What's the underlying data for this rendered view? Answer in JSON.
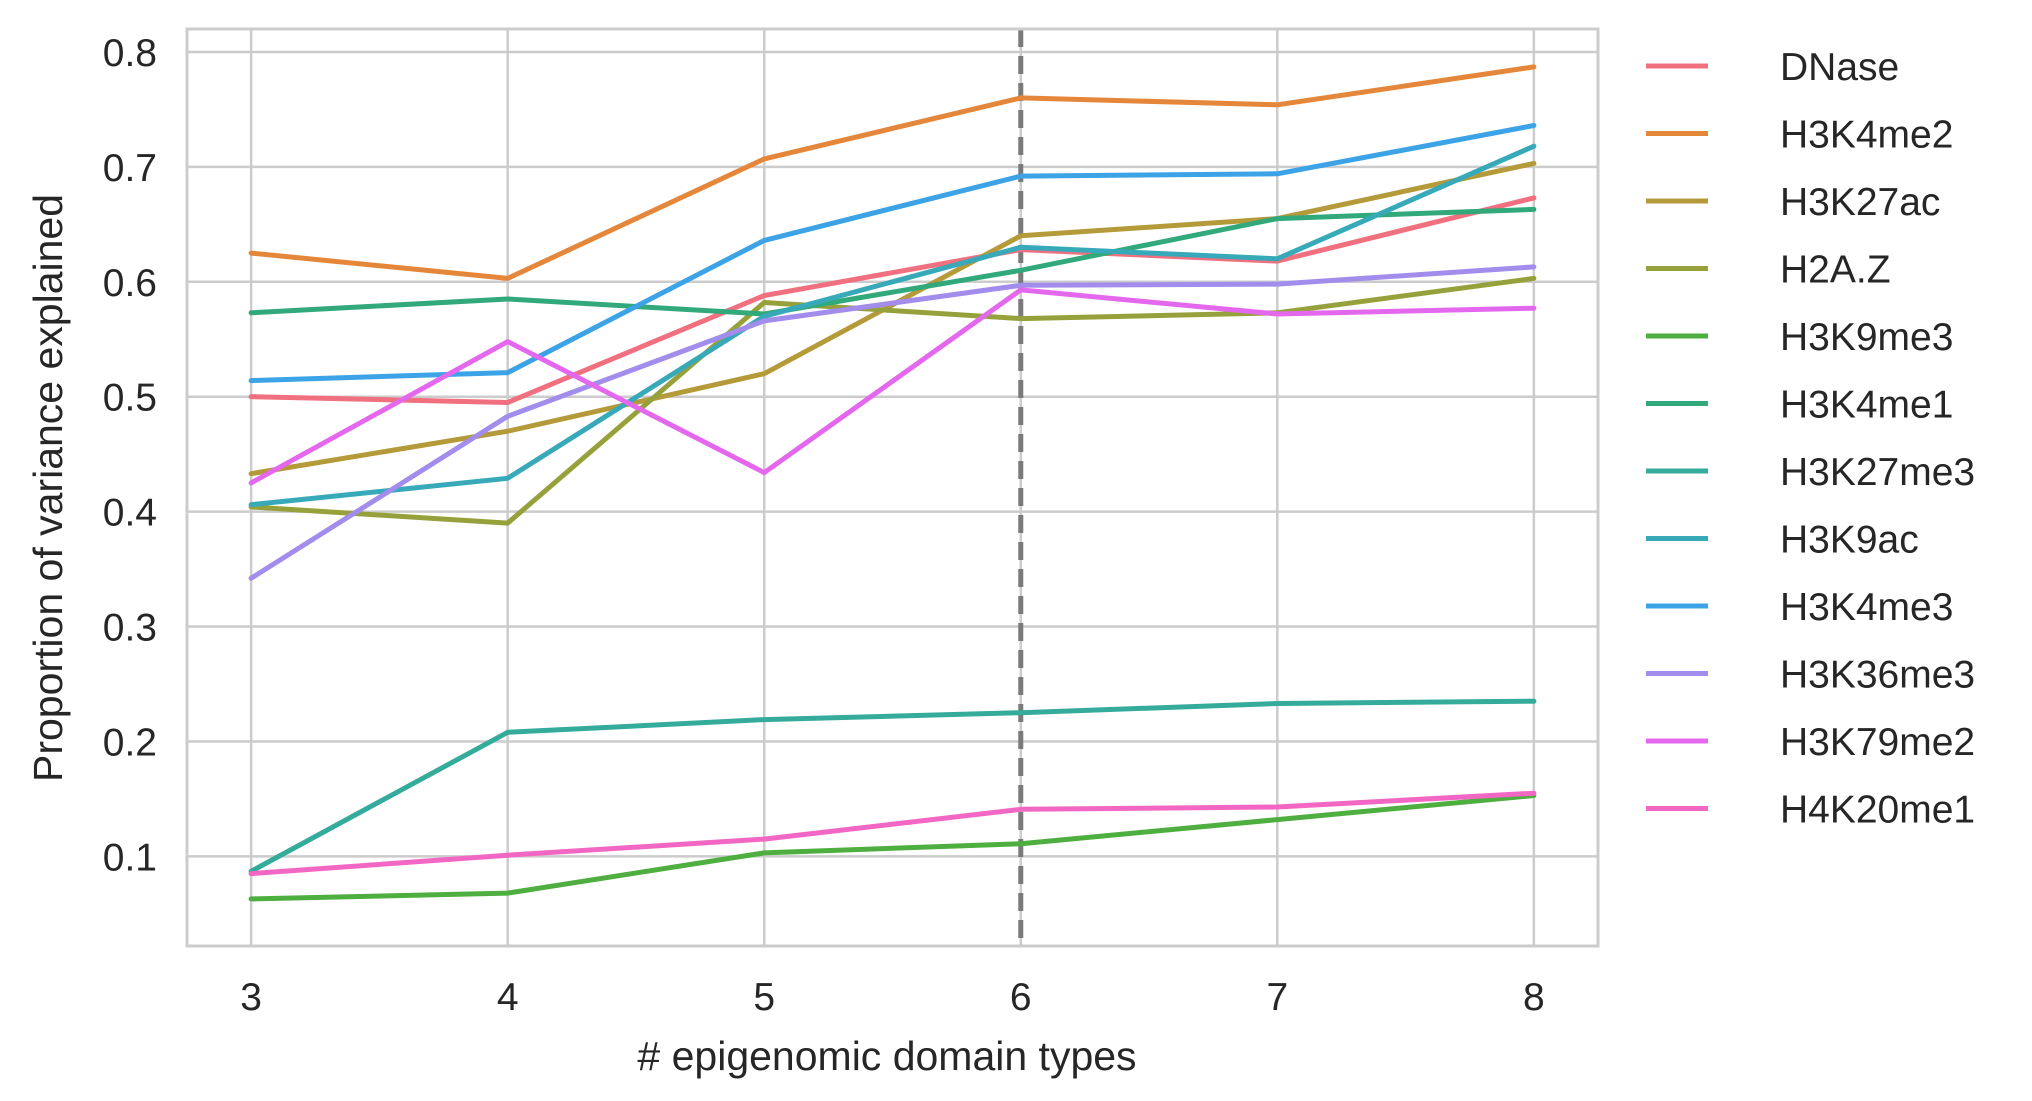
{
  "chart_data": {
    "type": "line",
    "title": "",
    "xlabel": "# epigenomic domain types",
    "ylabel": "Proportion of variance explained",
    "x": [
      3,
      4,
      5,
      6,
      7,
      8
    ],
    "xlim": [
      2.75,
      8.25
    ],
    "ylim": [
      0.022,
      0.82
    ],
    "xticks": [
      "3",
      "4",
      "5",
      "6",
      "7",
      "8"
    ],
    "yticks": [
      "0.1",
      "0.2",
      "0.3",
      "0.4",
      "0.5",
      "0.6",
      "0.7",
      "0.8"
    ],
    "vline_x": 6,
    "grid": true,
    "legend_position": "outside right",
    "series": [
      {
        "name": "DNase",
        "color": "#f0707f",
        "values": [
          0.5,
          0.495,
          0.588,
          0.628,
          0.618,
          0.673
        ]
      },
      {
        "name": "H3K4me2",
        "color": "#e5873a",
        "values": [
          0.625,
          0.603,
          0.707,
          0.76,
          0.754,
          0.787
        ]
      },
      {
        "name": "H3K27ac",
        "color": "#b59a3a",
        "values": [
          0.433,
          0.47,
          0.52,
          0.64,
          0.655,
          0.703
        ]
      },
      {
        "name": "H2A.Z",
        "color": "#97a13b",
        "values": [
          0.404,
          0.39,
          0.582,
          0.568,
          0.573,
          0.603
        ]
      },
      {
        "name": "H3K9me3",
        "color": "#4eae3f",
        "values": [
          0.063,
          0.068,
          0.103,
          0.111,
          0.132,
          0.153
        ]
      },
      {
        "name": "H3K4me1",
        "color": "#32a97b",
        "values": [
          0.573,
          0.585,
          0.572,
          0.61,
          0.655,
          0.663
        ]
      },
      {
        "name": "H3K27me3",
        "color": "#35ab9c",
        "values": [
          0.087,
          0.208,
          0.219,
          0.225,
          0.233,
          0.235
        ]
      },
      {
        "name": "H3K9ac",
        "color": "#37a9b9",
        "values": [
          0.406,
          0.429,
          0.57,
          0.63,
          0.62,
          0.718
        ]
      },
      {
        "name": "H3K4me3",
        "color": "#3ca3e6",
        "values": [
          0.514,
          0.521,
          0.636,
          0.692,
          0.694,
          0.736
        ]
      },
      {
        "name": "H3K36me3",
        "color": "#a28cec",
        "values": [
          0.342,
          0.483,
          0.566,
          0.597,
          0.598,
          0.613
        ]
      },
      {
        "name": "H3K79me2",
        "color": "#e468ee",
        "values": [
          0.425,
          0.548,
          0.434,
          0.593,
          0.572,
          0.577
        ]
      },
      {
        "name": "H4K20me1",
        "color": "#f267c4",
        "values": [
          0.085,
          0.101,
          0.115,
          0.141,
          0.143,
          0.155
        ]
      }
    ]
  }
}
